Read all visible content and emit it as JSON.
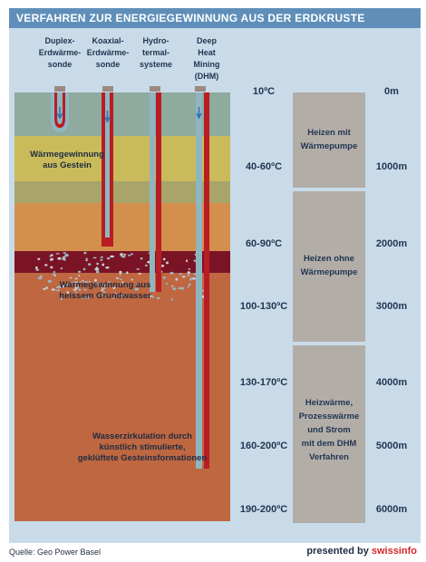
{
  "title": "VERFAHREN ZUR ENERGIEGEWINNUNG AUS DER ERDKRUSTE",
  "methods": [
    {
      "label": "Duplex-\nErdwärme-\nsonde"
    },
    {
      "label": "Koaxial-\nErdwärme-\nsonde"
    },
    {
      "label": "Hydro-\ntermal-\nsysteme"
    },
    {
      "label": "Deep\nHeat\nMining\n(DHM)"
    }
  ],
  "temperatures": [
    "10ºC",
    "40-60ºC",
    "60-90ºC",
    "100-130ºC",
    "130-170ºC",
    "160-200ºC",
    "190-200ºC"
  ],
  "depths": [
    "0m",
    "1000m",
    "2000m",
    "3000m",
    "4000m",
    "5000m",
    "6000m"
  ],
  "uses": [
    {
      "label": "Heizen mit\nWärmepumpe"
    },
    {
      "label": "Heizen ohne\nWärmepumpe"
    },
    {
      "label": "Heizwärme,\nProzesswärme\nund Strom\nmit dem DHM\nVerfahren"
    }
  ],
  "annotations": {
    "rock_heat": "Wärmegewinnung\naus Gestein",
    "groundwater_heat": "Wärmegewinnung aus\nheissem Grundwasser",
    "water_circulation": "Wasserzirkulation durch\nkünstlich stimulierte,\ngeklüftete Gesteinsformationen"
  },
  "footer": {
    "source": "Quelle: Geo Power Basel",
    "credit_prefix": "presented by ",
    "credit_brand": "swissinfo"
  },
  "colors": {
    "background": "#c9dbe9",
    "title_bar": "#5f8fb9",
    "layer_top": "#8faa9e",
    "layer_yellow": "#c9bb5a",
    "layer_olive": "#a9a46a",
    "layer_orange": "#d38f4c",
    "layer_aquifer": "#7a1425",
    "layer_deep": "#bf6740",
    "pipe_hot": "#b81d24",
    "pipe_cold": "#8fb6c0",
    "flow_arrow": "#2e6fb5",
    "use_box": "#b3ada8",
    "text": "#1f3550",
    "brand": "#d62728"
  }
}
